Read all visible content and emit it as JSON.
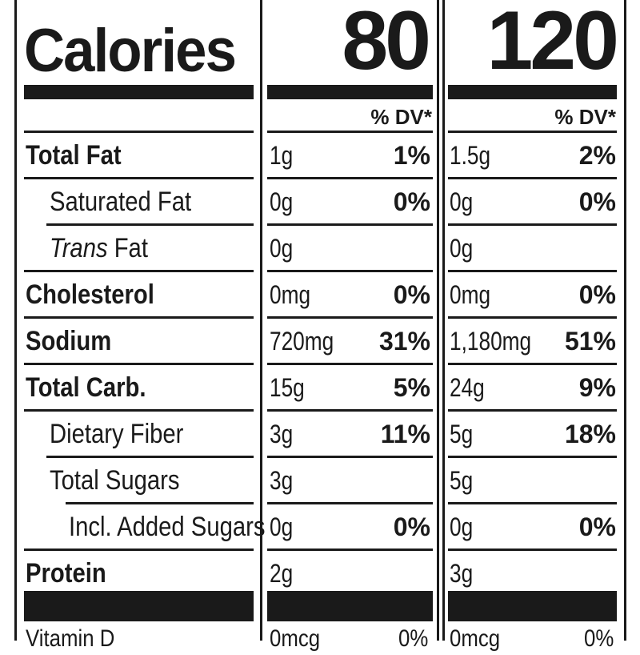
{
  "calories": {
    "label": "Calories",
    "value_1": "80",
    "value_2": "120"
  },
  "dv_header": {
    "col1": "% DV*",
    "col2": "% DV*"
  },
  "nutrients": [
    {
      "label": "Total Fat",
      "amt1": "1g",
      "pct1": "1%",
      "amt2": "1.5g",
      "pct2": "2%"
    },
    {
      "label": "Saturated Fat",
      "amt1": "0g",
      "pct1": "0%",
      "amt2": "0g",
      "pct2": "0%"
    },
    {
      "label_italic": "Trans",
      "label_rest": " Fat",
      "amt1": "0g",
      "pct1": "",
      "amt2": "0g",
      "pct2": ""
    },
    {
      "label": "Cholesterol",
      "amt1": "0mg",
      "pct1": "0%",
      "amt2": "0mg",
      "pct2": "0%"
    },
    {
      "label": "Sodium",
      "amt1": "720mg",
      "pct1": "31%",
      "amt2": "1,180mg",
      "pct2": "51%"
    },
    {
      "label": "Total Carb.",
      "amt1": "15g",
      "pct1": "5%",
      "amt2": "24g",
      "pct2": "9%"
    },
    {
      "label": "Dietary Fiber",
      "amt1": "3g",
      "pct1": "11%",
      "amt2": "5g",
      "pct2": "18%"
    },
    {
      "label": "Total Sugars",
      "amt1": "3g",
      "pct1": "",
      "amt2": "5g",
      "pct2": ""
    },
    {
      "label": "Incl. Added Sugars",
      "amt1": "0g",
      "pct1": "0%",
      "amt2": "0g",
      "pct2": "0%"
    },
    {
      "label": "Protein",
      "amt1": "2g",
      "pct1": "",
      "amt2": "3g",
      "pct2": ""
    }
  ],
  "vitamin_d": {
    "label": "Vitamin D",
    "amt1": "0mcg",
    "pct1": "0%",
    "amt2": "0mcg",
    "pct2": "0%"
  }
}
